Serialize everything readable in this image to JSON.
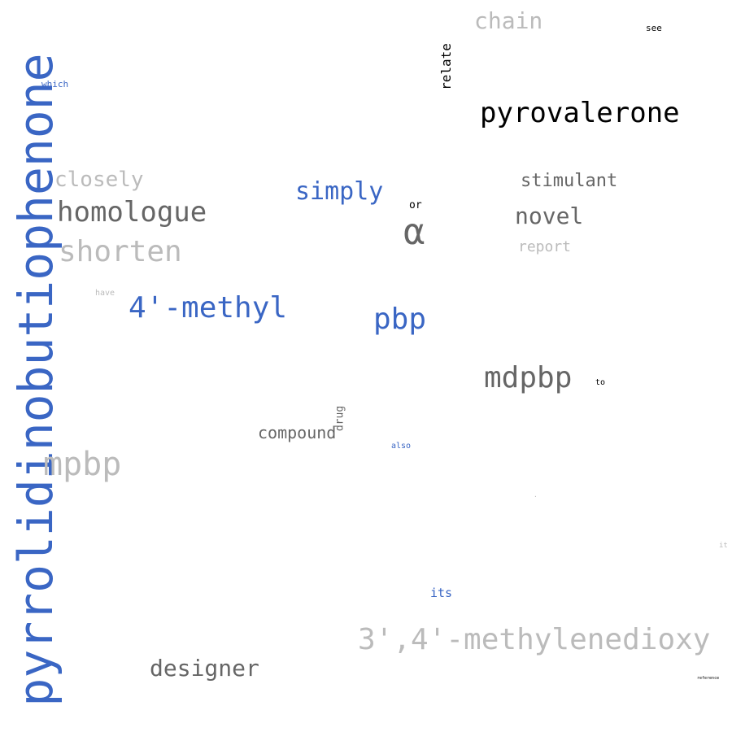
{
  "words": [
    {
      "text": "pyrrolidinobutiophenone",
      "color": "#3a66c4"
    },
    {
      "text": "pyrovalerone",
      "color": "#000000"
    },
    {
      "text": "3',4'-methylenedioxy",
      "color": "#bbbbbb"
    },
    {
      "text": "mdpbp",
      "color": "#666666"
    },
    {
      "text": "4'-methyl",
      "color": "#3a66c4"
    },
    {
      "text": "pbp",
      "color": "#3a66c4"
    },
    {
      "text": "α",
      "color": "#666666"
    },
    {
      "text": "homologue",
      "color": "#666666"
    },
    {
      "text": "shorten",
      "color": "#bbbbbb"
    },
    {
      "text": "mpbp",
      "color": "#bbbbbb"
    },
    {
      "text": "simply",
      "color": "#3a66c4"
    },
    {
      "text": "designer",
      "color": "#666666"
    },
    {
      "text": "novel",
      "color": "#666666"
    },
    {
      "text": "closely",
      "color": "#bbbbbb"
    },
    {
      "text": "stimulant",
      "color": "#666666"
    },
    {
      "text": "chain",
      "color": "#bbbbbb"
    },
    {
      "text": "compound",
      "color": "#666666"
    },
    {
      "text": "report",
      "color": "#bbbbbb"
    },
    {
      "text": "relate",
      "color": "#000000"
    },
    {
      "text": "drug",
      "color": "#666666"
    },
    {
      "text": "its",
      "color": "#3a66c4"
    },
    {
      "text": "which",
      "color": "#3a66c4"
    },
    {
      "text": "see",
      "color": "#000000"
    },
    {
      "text": "or",
      "color": "#000000"
    },
    {
      "text": "also",
      "color": "#3a66c4"
    },
    {
      "text": "to",
      "color": "#000000"
    },
    {
      "text": "have",
      "color": "#bbbbbb"
    },
    {
      "text": "it",
      "color": "#bbbbbb"
    },
    {
      "text": "reference",
      "color": "#000000"
    },
    {
      "text": "·",
      "color": "#bbbbbb"
    }
  ]
}
